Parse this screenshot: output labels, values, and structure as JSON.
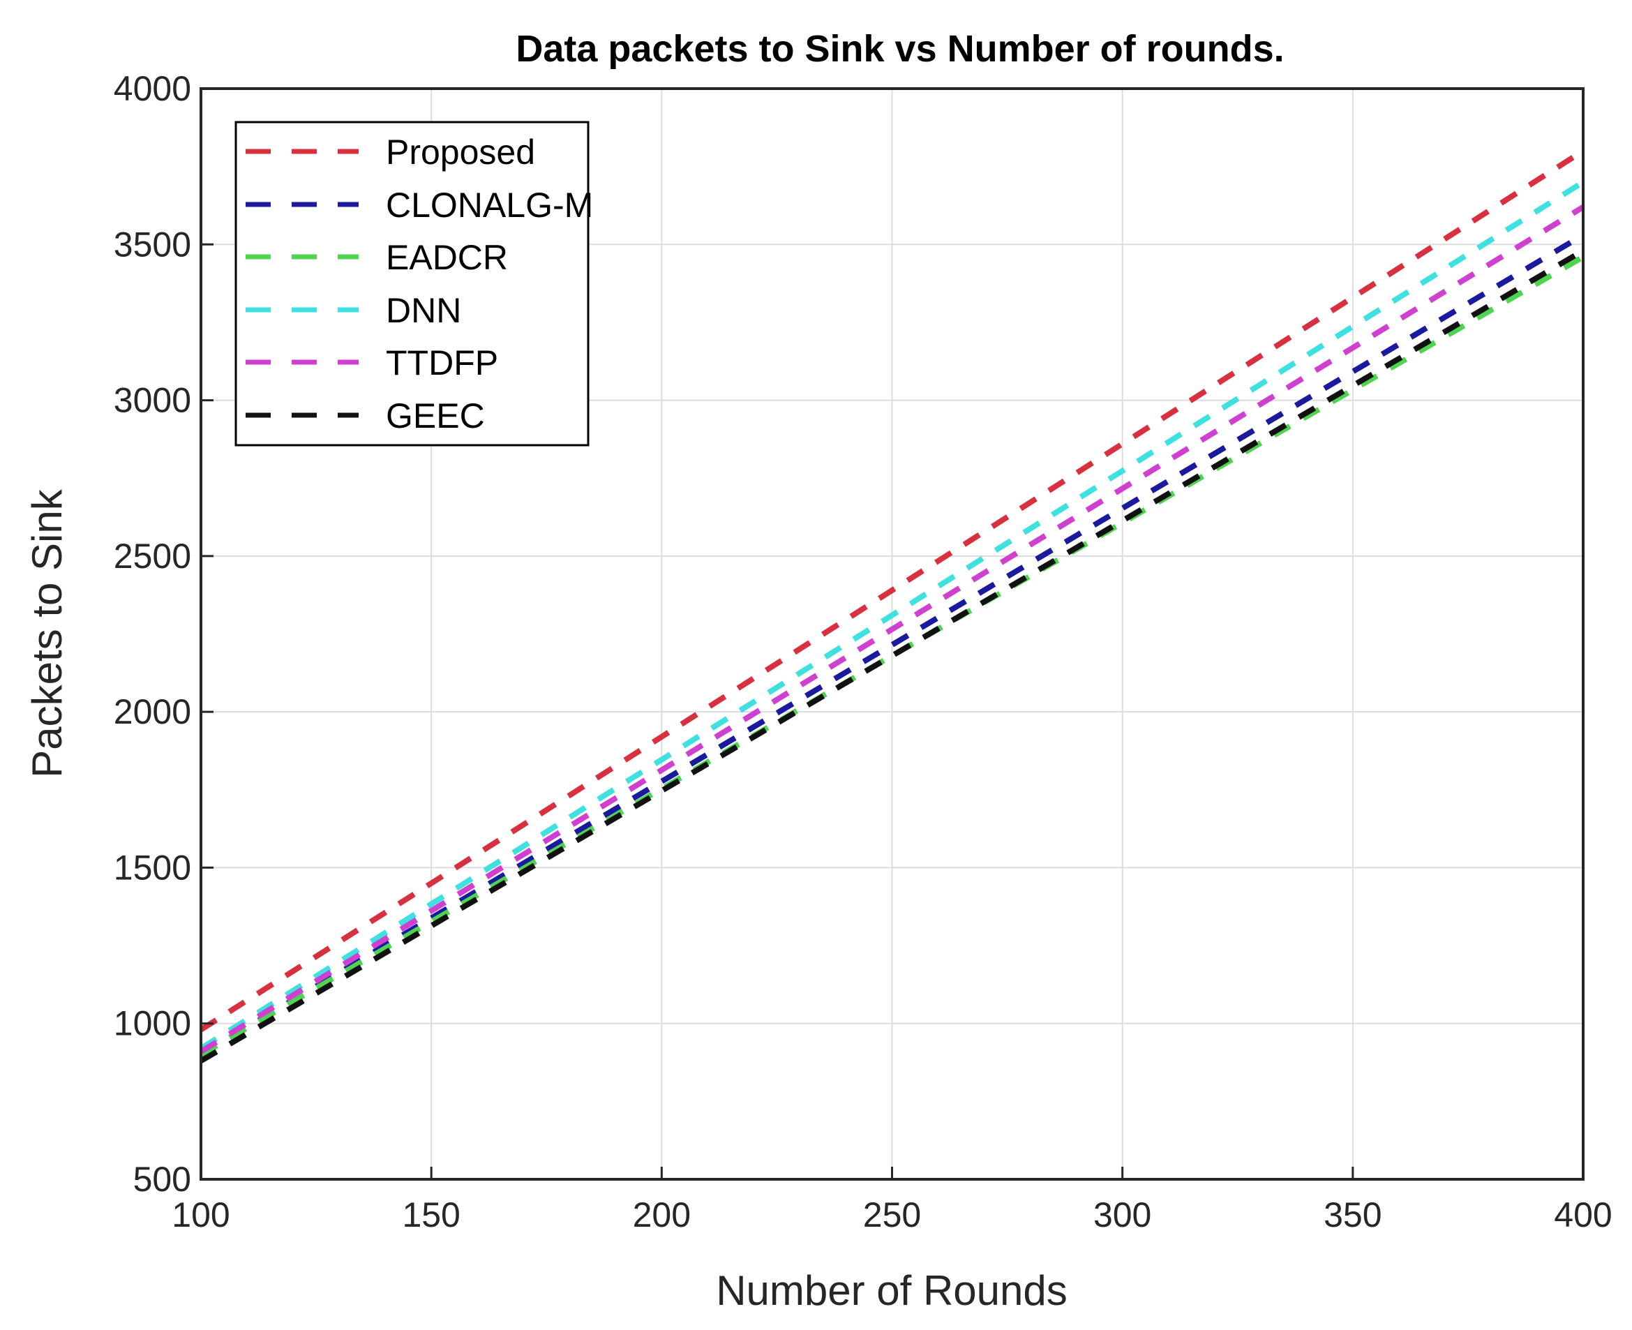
{
  "chart_data": {
    "type": "line",
    "title": "Data packets to Sink vs Number of rounds.",
    "xlabel": "Number of Rounds",
    "ylabel": "Packets to Sink",
    "xlim": [
      100,
      400
    ],
    "ylim": [
      500,
      4000
    ],
    "xticks": [
      100,
      150,
      200,
      250,
      300,
      350,
      400
    ],
    "yticks": [
      500,
      1000,
      1500,
      2000,
      2500,
      3000,
      3500,
      4000
    ],
    "grid": true,
    "legend_position": "top-left",
    "line_style": "dashed",
    "x": [
      100,
      400
    ],
    "series": [
      {
        "name": "Proposed",
        "color": "#d9303f",
        "values": [
          980,
          3800
        ]
      },
      {
        "name": "CLONALG-M",
        "color": "#1a1a9e",
        "values": [
          900,
          3530
        ]
      },
      {
        "name": "EADCR",
        "color": "#4fd44f",
        "values": [
          900,
          3460
        ]
      },
      {
        "name": "DNN",
        "color": "#3fe0e0",
        "values": [
          920,
          3700
        ]
      },
      {
        "name": "TTDFP",
        "color": "#d040d0",
        "values": [
          910,
          3620
        ]
      },
      {
        "name": "GEEC",
        "color": "#111111",
        "values": [
          880,
          3480
        ]
      }
    ]
  }
}
